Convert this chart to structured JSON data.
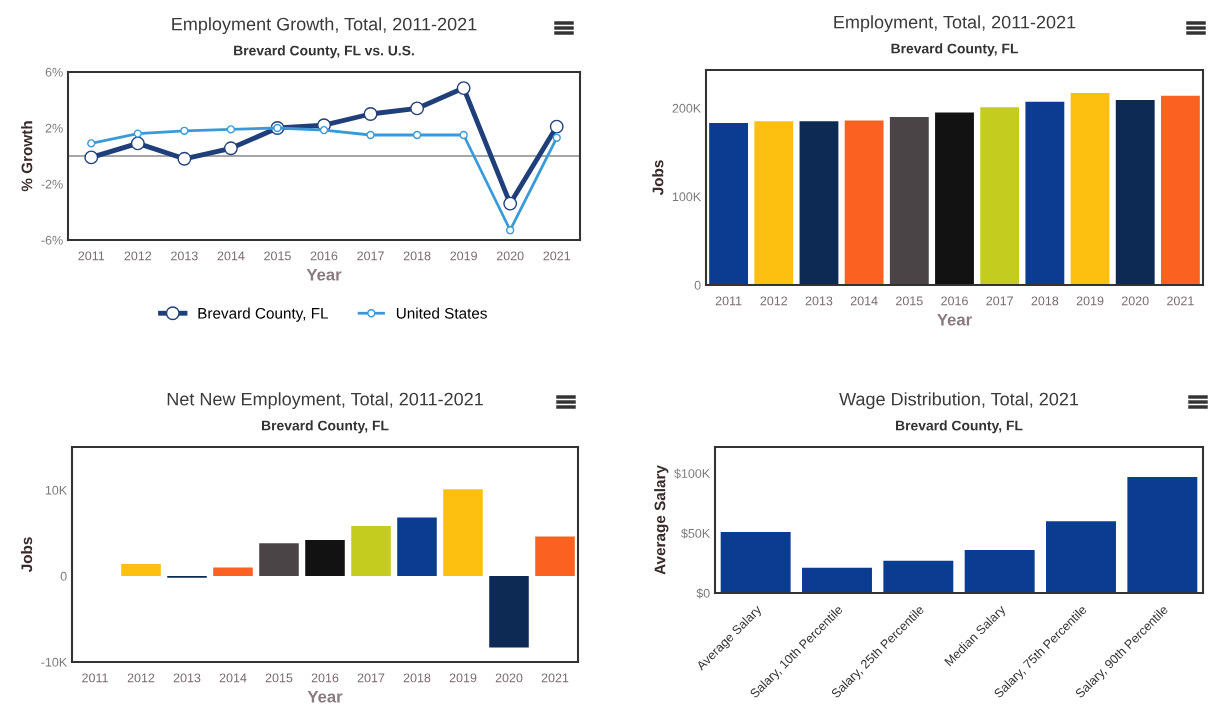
{
  "chart_data": [
    {
      "type": "line",
      "title": "Employment Growth, Total, 2011-2021",
      "subtitle": "Brevard County, FL vs. U.S.",
      "xlabel": "Year",
      "ylabel": "% Growth",
      "categories": [
        "2011",
        "2012",
        "2013",
        "2014",
        "2015",
        "2016",
        "2017",
        "2018",
        "2019",
        "2020",
        "2021"
      ],
      "series": [
        {
          "name": "Brevard County, FL",
          "color": "#1f3f7a",
          "values": [
            -0.1,
            0.9,
            -0.2,
            0.55,
            2.0,
            2.2,
            3.0,
            3.4,
            4.85,
            -3.4,
            2.1
          ]
        },
        {
          "name": "United States",
          "color": "#3a9ad9",
          "values": [
            0.9,
            1.6,
            1.8,
            1.9,
            2.0,
            1.85,
            1.5,
            1.5,
            1.5,
            -5.3,
            1.3
          ]
        }
      ],
      "ylim": [
        -6,
        6
      ],
      "yticks": [
        {
          "value": 6,
          "label": "6%"
        },
        {
          "value": 2,
          "label": "2%"
        },
        {
          "value": -2,
          "label": "-2%"
        },
        {
          "value": -6,
          "label": "-6%"
        }
      ],
      "ref_lines": [
        {
          "axis": "y",
          "value": 0,
          "label": null,
          "color": "#888888"
        }
      ],
      "marker": "circle",
      "line_style": "solid",
      "grid": false,
      "legend": "bottom"
    },
    {
      "type": "bar",
      "title": "Employment, Total, 2011-2021",
      "subtitle": "Brevard County, FL",
      "xlabel": "Year",
      "ylabel": "Jobs",
      "categories": [
        "2011",
        "2012",
        "2013",
        "2014",
        "2015",
        "2016",
        "2017",
        "2018",
        "2019",
        "2020",
        "2021"
      ],
      "values": [
        183000,
        185000,
        185000,
        186000,
        190000,
        195000,
        201000,
        207000,
        217000,
        209000,
        214000
      ],
      "colors": [
        "#0a3d91",
        "#fdc010",
        "#0d2a55",
        "#fb6121",
        "#4a4447",
        "#121212",
        "#c4cc20",
        "#0a3d91",
        "#fdc010",
        "#0d2a55",
        "#fb6121"
      ],
      "ylim": [
        0,
        243000
      ],
      "yticks": [
        {
          "value": 0,
          "label": "0"
        },
        {
          "value": 100000,
          "label": "100K"
        },
        {
          "value": 200000,
          "label": "200K"
        }
      ],
      "grid": false,
      "legend": false
    },
    {
      "type": "bar",
      "title": "Net New Employment, Total, 2011-2021",
      "subtitle": "Brevard County, FL",
      "xlabel": "Year",
      "ylabel": "Jobs",
      "categories": [
        "2011",
        "2012",
        "2013",
        "2014",
        "2015",
        "2016",
        "2017",
        "2018",
        "2019",
        "2020",
        "2021"
      ],
      "values": [
        null,
        1400,
        -200,
        1000,
        3800,
        4200,
        5800,
        6800,
        10100,
        -8300,
        4600
      ],
      "colors": [
        "#0a3d91",
        "#fdc010",
        "#0d2a55",
        "#fb6121",
        "#4a4447",
        "#121212",
        "#c4cc20",
        "#0a3d91",
        "#fdc010",
        "#0d2a55",
        "#fb6121"
      ],
      "ylim": [
        -10000,
        15000
      ],
      "yticks": [
        {
          "value": -10000,
          "label": "-10K"
        },
        {
          "value": 0,
          "label": "0"
        },
        {
          "value": 10000,
          "label": "10K"
        }
      ],
      "grid": false,
      "legend": false
    },
    {
      "type": "bar",
      "title": "Wage Distribution, Total, 2021",
      "subtitle": "Brevard County, FL",
      "ylabel": "Average Salary",
      "categories": [
        "Average Salary",
        "Salary, 10th Percentile",
        "Salary, 25th Percentile",
        "Median Salary",
        "Salary, 75th Percentile",
        "Salary, 90th Percentile"
      ],
      "values": [
        51000,
        21000,
        27000,
        36000,
        60000,
        97000
      ],
      "color": "#0a3d91",
      "ylim": [
        0,
        122000
      ],
      "yticks": [
        {
          "value": 0,
          "label": "$0"
        },
        {
          "value": 50000,
          "label": "$50K"
        },
        {
          "value": 100000,
          "label": "$100K"
        }
      ],
      "grid": false,
      "legend": false
    }
  ]
}
